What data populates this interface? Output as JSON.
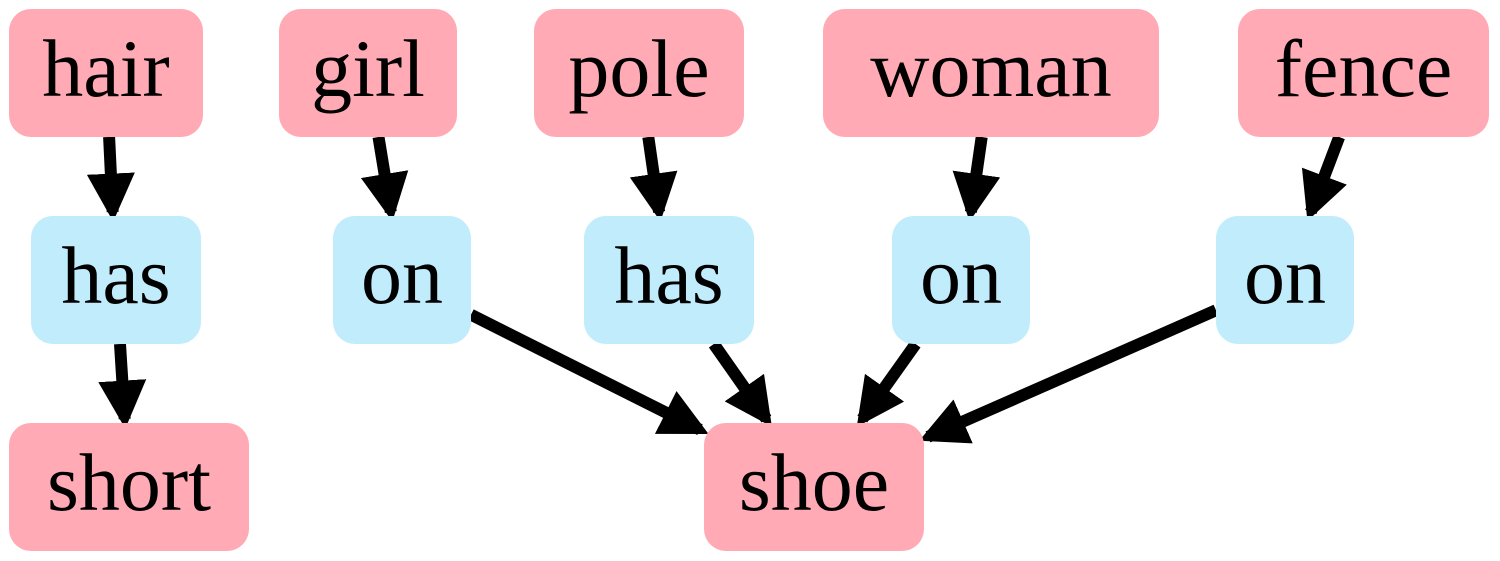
{
  "colors": {
    "object_node": "#ffaab4",
    "relation_node": "#c0ecfc",
    "edge": "#000000"
  },
  "nodes": {
    "hair": "hair",
    "girl": "girl",
    "pole": "pole",
    "woman": "woman",
    "fence": "fence",
    "has_1": "has",
    "on_1": "on",
    "has_2": "has",
    "on_2": "on",
    "on_3": "on",
    "short": "short",
    "shoe": "shoe"
  },
  "edges": [
    [
      "hair",
      "has_1"
    ],
    [
      "has_1",
      "short"
    ],
    [
      "girl",
      "on_1"
    ],
    [
      "on_1",
      "shoe"
    ],
    [
      "pole",
      "has_2"
    ],
    [
      "has_2",
      "shoe"
    ],
    [
      "woman",
      "on_2"
    ],
    [
      "on_2",
      "shoe"
    ],
    [
      "fence",
      "on_3"
    ],
    [
      "on_3",
      "shoe"
    ]
  ]
}
